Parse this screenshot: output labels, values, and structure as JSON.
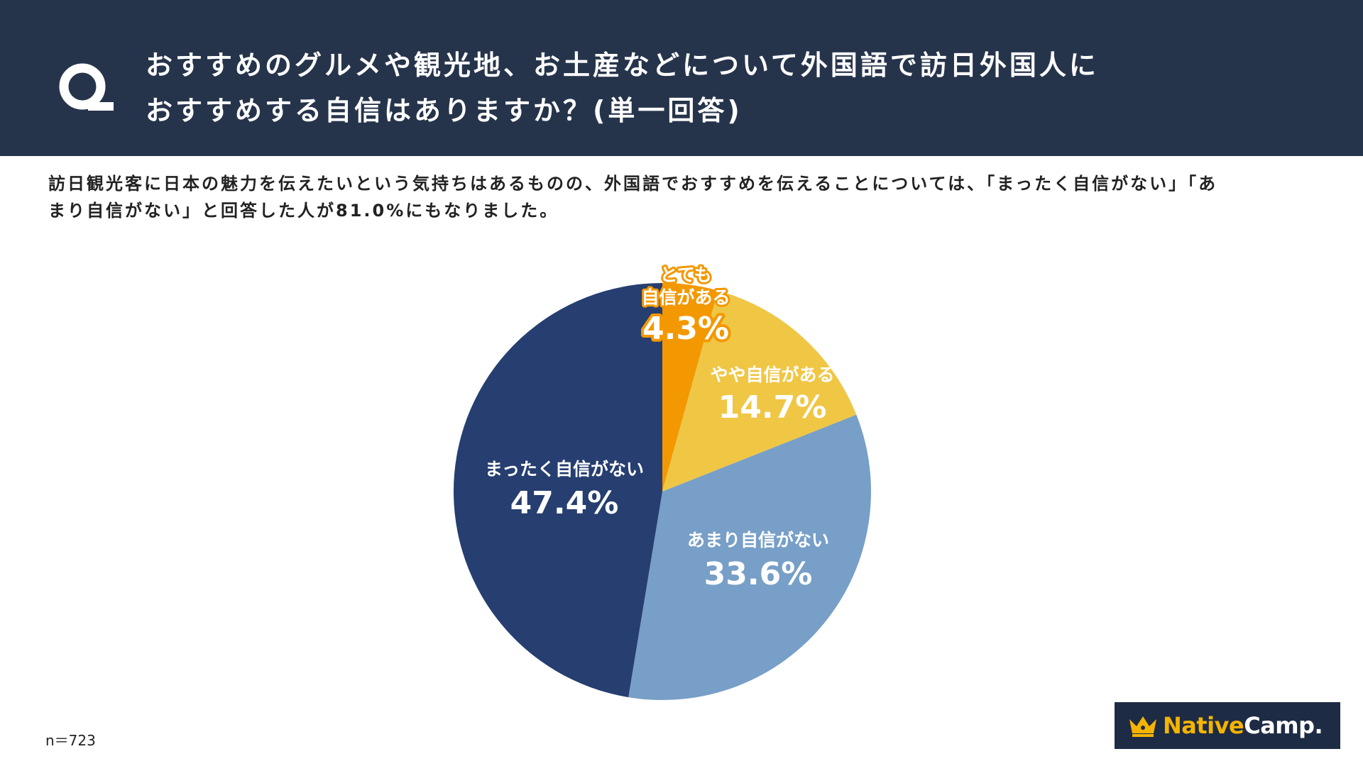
{
  "header": {
    "title_line1": "おすすめのグルメや観光地、お土産などについて外国語で訪日外国人に",
    "title_line2": "おすすめする自信はありますか？(単一回答)"
  },
  "summary": {
    "line1": "訪日観光客に日本の魅力を伝えたいという気持ちはあるものの、外国語でおすすめを伝えることについては、「まったく自信がない」「あ",
    "line2": "まり自信がない」と回答した人が81.0%にもなりました。"
  },
  "footer": {
    "n_label": "n＝723"
  },
  "logo": {
    "native": "Native",
    "camp": "Camp."
  },
  "chart_data": {
    "type": "pie",
    "title": "おすすめのグルメや観光地、お土産などについて外国語で訪日外国人におすすめする自信はありますか？(単一回答)",
    "start": "12 o'clock, clockwise",
    "n": 723,
    "slices": [
      {
        "name_lines": [
          "とても",
          "自信がある"
        ],
        "value": 4.3,
        "value_label": "4.3%",
        "color": "#f39800",
        "label_color": "#ffffff",
        "label_outline": "#f39800"
      },
      {
        "name_lines": [
          "やや自信がある"
        ],
        "value": 14.7,
        "value_label": "14.7%",
        "color": "#f0c645",
        "label_color": "#ffffff",
        "label_outline": ""
      },
      {
        "name_lines": [
          "あまり自信がない"
        ],
        "value": 33.6,
        "value_label": "33.6%",
        "color": "#779fc7",
        "label_color": "#ffffff",
        "label_outline": ""
      },
      {
        "name_lines": [
          "まったく自信がない"
        ],
        "value": 47.4,
        "value_label": "47.4%",
        "color": "#263e70",
        "label_color": "#ffffff",
        "label_outline": ""
      }
    ]
  }
}
